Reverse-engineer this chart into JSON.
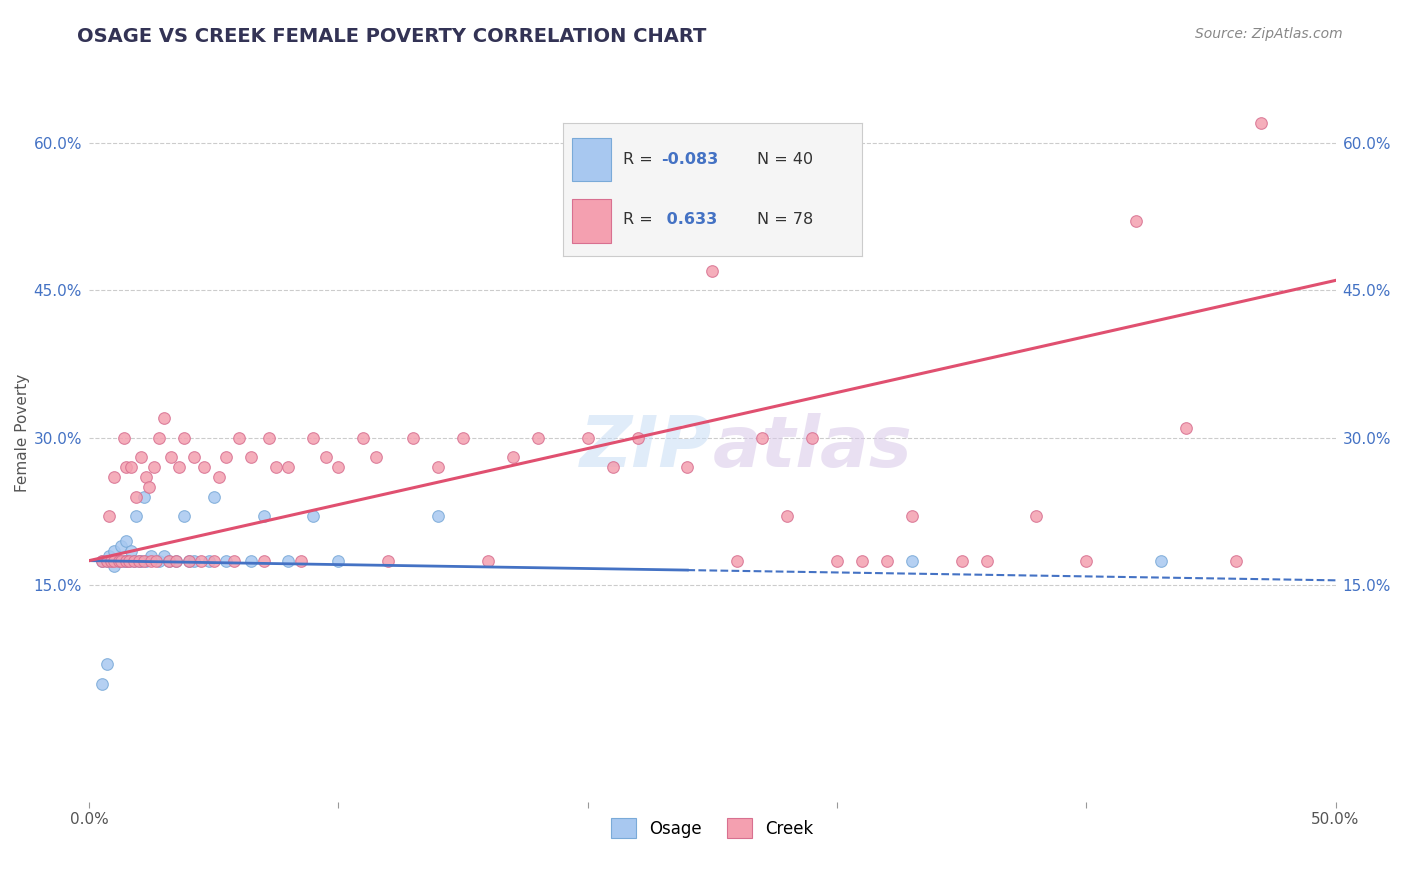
{
  "title": "OSAGE VS CREEK FEMALE POVERTY CORRELATION CHART",
  "source": "Source: ZipAtlas.com",
  "ylabel": "Female Poverty",
  "xlim": [
    0.0,
    0.5
  ],
  "ylim": [
    -0.07,
    0.68
  ],
  "xticks": [
    0.0,
    0.1,
    0.2,
    0.3,
    0.4,
    0.5
  ],
  "xtick_labels": [
    "0.0%",
    "",
    "",
    "",
    "",
    "50.0%"
  ],
  "yticks": [
    0.15,
    0.3,
    0.45,
    0.6
  ],
  "ytick_labels": [
    "15.0%",
    "30.0%",
    "45.0%",
    "60.0%"
  ],
  "grid_color": "#cccccc",
  "background_color": "#ffffff",
  "osage_color": "#a8c8f0",
  "creek_color": "#f4a0b0",
  "osage_line_color": "#4472c4",
  "creek_line_color": "#e05070",
  "osage_R": -0.083,
  "osage_N": 40,
  "creek_R": 0.633,
  "creek_N": 78,
  "osage_line": [
    0.175,
    0.155
  ],
  "creek_line": [
    0.175,
    0.46
  ],
  "osage_scatter": [
    [
      0.005,
      0.175
    ],
    [
      0.007,
      0.175
    ],
    [
      0.008,
      0.18
    ],
    [
      0.009,
      0.175
    ],
    [
      0.01,
      0.17
    ],
    [
      0.01,
      0.185
    ],
    [
      0.012,
      0.175
    ],
    [
      0.013,
      0.19
    ],
    [
      0.014,
      0.175
    ],
    [
      0.015,
      0.195
    ],
    [
      0.015,
      0.175
    ],
    [
      0.016,
      0.175
    ],
    [
      0.017,
      0.185
    ],
    [
      0.018,
      0.175
    ],
    [
      0.019,
      0.22
    ],
    [
      0.02,
      0.175
    ],
    [
      0.021,
      0.175
    ],
    [
      0.022,
      0.24
    ],
    [
      0.023,
      0.175
    ],
    [
      0.025,
      0.18
    ],
    [
      0.028,
      0.175
    ],
    [
      0.03,
      0.18
    ],
    [
      0.032,
      0.175
    ],
    [
      0.035,
      0.175
    ],
    [
      0.038,
      0.22
    ],
    [
      0.04,
      0.175
    ],
    [
      0.042,
      0.175
    ],
    [
      0.048,
      0.175
    ],
    [
      0.05,
      0.24
    ],
    [
      0.055,
      0.175
    ],
    [
      0.065,
      0.175
    ],
    [
      0.07,
      0.22
    ],
    [
      0.08,
      0.175
    ],
    [
      0.09,
      0.22
    ],
    [
      0.1,
      0.175
    ],
    [
      0.14,
      0.22
    ],
    [
      0.005,
      0.05
    ],
    [
      0.007,
      0.07
    ],
    [
      0.33,
      0.175
    ],
    [
      0.43,
      0.175
    ]
  ],
  "creek_scatter": [
    [
      0.005,
      0.175
    ],
    [
      0.007,
      0.175
    ],
    [
      0.008,
      0.22
    ],
    [
      0.009,
      0.175
    ],
    [
      0.01,
      0.175
    ],
    [
      0.01,
      0.26
    ],
    [
      0.012,
      0.175
    ],
    [
      0.013,
      0.175
    ],
    [
      0.014,
      0.3
    ],
    [
      0.015,
      0.175
    ],
    [
      0.015,
      0.27
    ],
    [
      0.016,
      0.175
    ],
    [
      0.017,
      0.27
    ],
    [
      0.018,
      0.175
    ],
    [
      0.019,
      0.24
    ],
    [
      0.02,
      0.175
    ],
    [
      0.021,
      0.28
    ],
    [
      0.022,
      0.175
    ],
    [
      0.023,
      0.26
    ],
    [
      0.024,
      0.25
    ],
    [
      0.025,
      0.175
    ],
    [
      0.026,
      0.27
    ],
    [
      0.027,
      0.175
    ],
    [
      0.028,
      0.3
    ],
    [
      0.03,
      0.32
    ],
    [
      0.032,
      0.175
    ],
    [
      0.033,
      0.28
    ],
    [
      0.035,
      0.175
    ],
    [
      0.036,
      0.27
    ],
    [
      0.038,
      0.3
    ],
    [
      0.04,
      0.175
    ],
    [
      0.042,
      0.28
    ],
    [
      0.045,
      0.175
    ],
    [
      0.046,
      0.27
    ],
    [
      0.05,
      0.175
    ],
    [
      0.052,
      0.26
    ],
    [
      0.055,
      0.28
    ],
    [
      0.058,
      0.175
    ],
    [
      0.06,
      0.3
    ],
    [
      0.065,
      0.28
    ],
    [
      0.07,
      0.175
    ],
    [
      0.072,
      0.3
    ],
    [
      0.075,
      0.27
    ],
    [
      0.08,
      0.27
    ],
    [
      0.085,
      0.175
    ],
    [
      0.09,
      0.3
    ],
    [
      0.095,
      0.28
    ],
    [
      0.1,
      0.27
    ],
    [
      0.11,
      0.3
    ],
    [
      0.115,
      0.28
    ],
    [
      0.12,
      0.175
    ],
    [
      0.13,
      0.3
    ],
    [
      0.14,
      0.27
    ],
    [
      0.15,
      0.3
    ],
    [
      0.16,
      0.175
    ],
    [
      0.17,
      0.28
    ],
    [
      0.18,
      0.3
    ],
    [
      0.2,
      0.3
    ],
    [
      0.21,
      0.27
    ],
    [
      0.22,
      0.3
    ],
    [
      0.24,
      0.27
    ],
    [
      0.25,
      0.47
    ],
    [
      0.26,
      0.175
    ],
    [
      0.27,
      0.3
    ],
    [
      0.28,
      0.22
    ],
    [
      0.29,
      0.3
    ],
    [
      0.3,
      0.175
    ],
    [
      0.31,
      0.175
    ],
    [
      0.32,
      0.175
    ],
    [
      0.33,
      0.22
    ],
    [
      0.35,
      0.175
    ],
    [
      0.36,
      0.175
    ],
    [
      0.38,
      0.22
    ],
    [
      0.4,
      0.175
    ],
    [
      0.42,
      0.52
    ],
    [
      0.44,
      0.31
    ],
    [
      0.46,
      0.175
    ],
    [
      0.47,
      0.62
    ]
  ]
}
